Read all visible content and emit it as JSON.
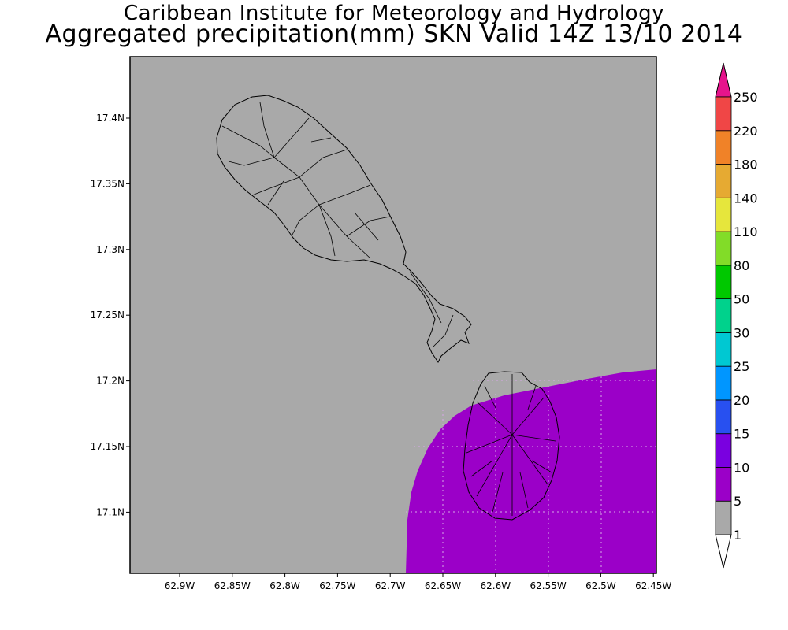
{
  "title": {
    "line1": "Caribbean Institute for Meteorology and Hydrology",
    "line2": "Aggregated precipitation(mm) SKN Valid 14Z 13/10 2014"
  },
  "axes": {
    "x_ticks": [
      "62.9W",
      "62.85W",
      "62.8W",
      "62.75W",
      "62.7W",
      "62.65W",
      "62.6W",
      "62.55W",
      "62.5W",
      "62.45W"
    ],
    "y_ticks": [
      "17.4N",
      "17.35N",
      "17.3N",
      "17.25N",
      "17.2N",
      "17.15N",
      "17.1N"
    ]
  },
  "map": {
    "background_color": "#a9a9a9",
    "precip_color": "#9b00c8",
    "precip_category": "5–10 mm"
  },
  "colorbar": {
    "levels": [
      "1",
      "5",
      "10",
      "15",
      "20",
      "25",
      "30",
      "50",
      "80",
      "110",
      "140",
      "180",
      "220",
      "250"
    ],
    "colors": [
      "#a9a9a9",
      "#9b00c8",
      "#7a00e0",
      "#2850f0",
      "#0096ff",
      "#00c8d2",
      "#00d28c",
      "#00c800",
      "#82dc28",
      "#e6e63c",
      "#e6aa32",
      "#f08228",
      "#f04646",
      "#e6148c"
    ],
    "top_triangle_color": "#e6148c",
    "bottom_triangle_color": "#ffffff"
  }
}
